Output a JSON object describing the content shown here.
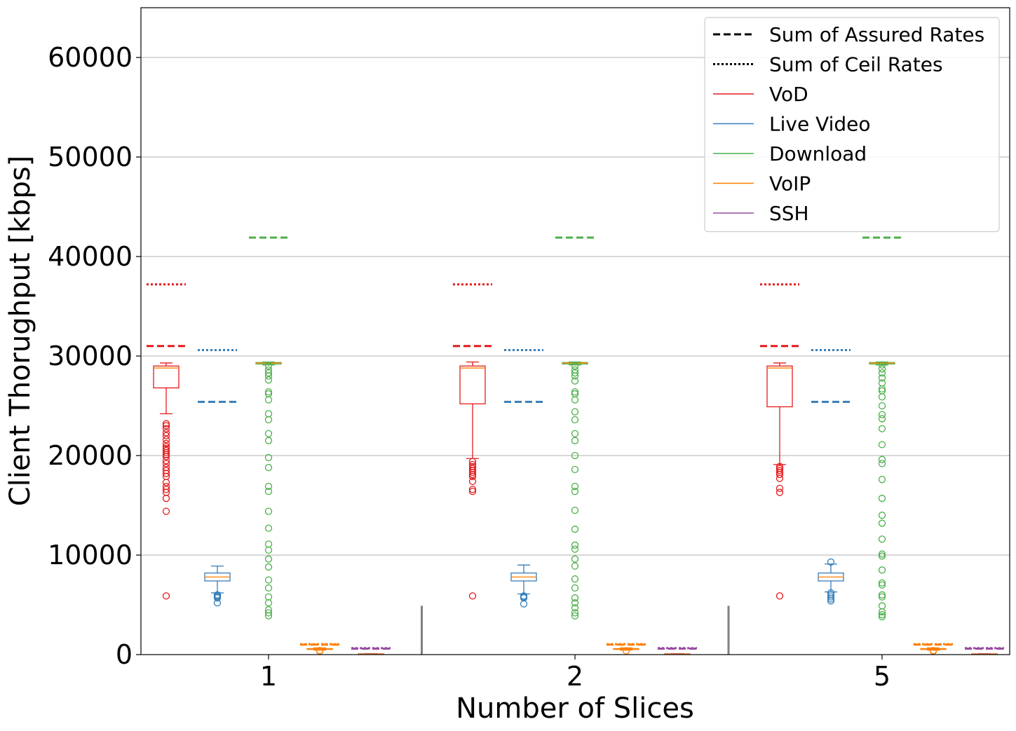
{
  "chart_data": {
    "type": "box",
    "title": "",
    "xlabel": "Number of Slices",
    "ylabel": "Client Thorughput [kbps]",
    "ylim": [
      0,
      65000
    ],
    "yticks": [
      0,
      10000,
      20000,
      30000,
      40000,
      50000,
      60000
    ],
    "grid": "horizontal",
    "legend_position": "top-right",
    "categories": [
      "1",
      "2",
      "5"
    ],
    "legend": [
      {
        "label": "Sum of Assured Rates",
        "style": "dashed",
        "color": "#000000"
      },
      {
        "label": "Sum of Ceil Rates",
        "style": "dotted",
        "color": "#000000"
      },
      {
        "label": "VoD",
        "style": "solid",
        "color": "#e41a1c"
      },
      {
        "label": "Live Video",
        "style": "solid",
        "color": "#377eb8"
      },
      {
        "label": "Download",
        "style": "solid",
        "color": "#4daf4a"
      },
      {
        "label": "VoIP",
        "style": "solid",
        "color": "#ff7f00"
      },
      {
        "label": "SSH",
        "style": "solid",
        "color": "#984ea3"
      }
    ],
    "median_color": "#ff7f00",
    "series": [
      {
        "name": "VoD",
        "color": "#e41a1c",
        "assured": 31000,
        "ceil": 37200,
        "boxes": [
          {
            "q1": 26800,
            "median": 28800,
            "q3": 29000,
            "whisker_low": 24200,
            "whisker_high": 29300,
            "outliers": [
              23200,
              23000,
              22700,
              22300,
              22000,
              21600,
              21200,
              20900,
              20700,
              20500,
              20300,
              20100,
              19900,
              19500,
              19200,
              18800,
              18500,
              18200,
              17900,
              17300,
              16900,
              16600,
              16300,
              15700,
              14400,
              5900
            ]
          },
          {
            "q1": 25200,
            "median": 28800,
            "q3": 29000,
            "whisker_low": 19700,
            "whisker_high": 29400,
            "outliers": [
              19400,
              19100,
              18900,
              18700,
              18500,
              18300,
              18100,
              17900,
              17400,
              16600,
              16400,
              5900
            ]
          },
          {
            "q1": 24900,
            "median": 28800,
            "q3": 29000,
            "whisker_low": 19100,
            "whisker_high": 29300,
            "outliers": [
              18900,
              18700,
              18500,
              18300,
              18100,
              17700,
              16700,
              16300,
              5900
            ]
          }
        ]
      },
      {
        "name": "Live Video",
        "color": "#377eb8",
        "assured": 25400,
        "ceil": 30600,
        "boxes": [
          {
            "q1": 7400,
            "median": 7800,
            "q3": 8200,
            "whisker_low": 6200,
            "whisker_high": 8900,
            "outliers": [
              6000,
              5900,
              5800,
              5700,
              5200
            ]
          },
          {
            "q1": 7400,
            "median": 7800,
            "q3": 8200,
            "whisker_low": 6100,
            "whisker_high": 9000,
            "outliers": [
              5900,
              5800,
              5700,
              5100
            ]
          },
          {
            "q1": 7400,
            "median": 7800,
            "q3": 8200,
            "whisker_low": 6300,
            "whisker_high": 9100,
            "outliers": [
              9300,
              6200,
              6000,
              5800,
              5600,
              5400
            ]
          }
        ]
      },
      {
        "name": "Download",
        "color": "#4daf4a",
        "assured": 41900,
        "ceil": null,
        "boxes": [
          {
            "q1": 29200,
            "median": 29300,
            "q3": 29350,
            "whisker_low": 29100,
            "whisker_high": 29400,
            "outliers": [
              29000,
              28600,
              28300,
              28000,
              27600,
              26400,
              26200,
              25600,
              24200,
              23600,
              22200,
              21500,
              19800,
              18800,
              16900,
              16400,
              14400,
              12700,
              11100,
              10500,
              9600,
              8800,
              7500,
              6700,
              5800,
              5200,
              4500,
              4200,
              3900
            ]
          },
          {
            "q1": 29200,
            "median": 29300,
            "q3": 29350,
            "whisker_low": 29100,
            "whisker_high": 29400,
            "outliers": [
              29000,
              28600,
              28300,
              28000,
              27500,
              26400,
              26200,
              25600,
              24400,
              23600,
              22200,
              21500,
              20000,
              18600,
              16900,
              16400,
              14500,
              12600,
              11000,
              10600,
              9600,
              8900,
              7600,
              6700,
              5700,
              5200,
              4700,
              4200,
              3900
            ]
          },
          {
            "q1": 29200,
            "median": 29300,
            "q3": 29350,
            "whisker_low": 29100,
            "whisker_high": 29400,
            "outliers": [
              29100,
              28700,
              28300,
              27800,
              27300,
              26700,
              26500,
              25900,
              25000,
              24100,
              23700,
              22700,
              21100,
              19600,
              19200,
              17600,
              15700,
              14000,
              13200,
              11600,
              10100,
              9900,
              8500,
              7200,
              7000,
              6000,
              5800,
              4900,
              4300,
              4000,
              3800
            ]
          }
        ]
      },
      {
        "name": "VoIP",
        "color": "#ff7f00",
        "assured": 1000,
        "ceil": 1050,
        "boxes": [
          {
            "q1": 520,
            "median": 560,
            "q3": 600,
            "whisker_low": 450,
            "whisker_high": 680,
            "outliers": [
              400,
              350
            ]
          },
          {
            "q1": 520,
            "median": 560,
            "q3": 600,
            "whisker_low": 450,
            "whisker_high": 680,
            "outliers": [
              380
            ]
          },
          {
            "q1": 520,
            "median": 560,
            "q3": 600,
            "whisker_low": 450,
            "whisker_high": 680,
            "outliers": [
              400,
              350
            ]
          }
        ]
      },
      {
        "name": "SSH",
        "color": "#984ea3",
        "assured": 600,
        "ceil": 650,
        "boxes": [
          {
            "q1": 40,
            "median": 60,
            "q3": 80,
            "whisker_low": 20,
            "whisker_high": 100,
            "outliers": []
          },
          {
            "q1": 40,
            "median": 60,
            "q3": 80,
            "whisker_low": 20,
            "whisker_high": 100,
            "outliers": []
          },
          {
            "q1": 40,
            "median": 60,
            "q3": 80,
            "whisker_low": 20,
            "whisker_high": 100,
            "outliers": []
          }
        ]
      }
    ]
  }
}
